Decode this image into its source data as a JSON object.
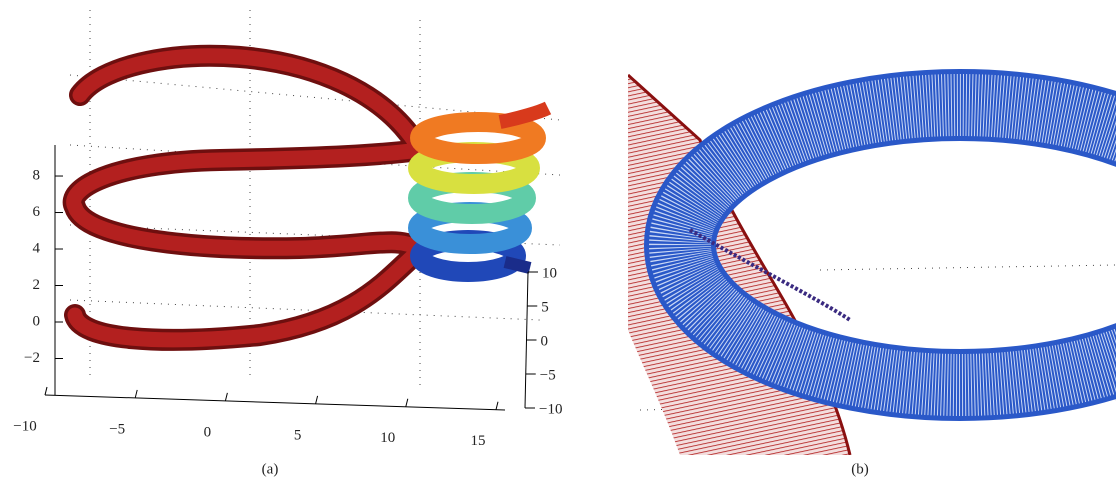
{
  "chart_data": [
    {
      "type": "surface3d",
      "caption": "(a)",
      "xlim": [
        -10,
        15.5
      ],
      "xticks": [
        {
          "value": -10,
          "label": "−10"
        },
        {
          "value": -5,
          "label": "−5"
        },
        0,
        5,
        10,
        15
      ],
      "ylim": [
        -10,
        10
      ],
      "yticks": [
        {
          "value": -10,
          "label": "−10"
        },
        {
          "value": -5,
          "label": "−5"
        },
        0,
        5,
        10
      ],
      "zlim": [
        -4,
        9.7
      ],
      "zticks": [
        {
          "value": -2,
          "label": "−2"
        },
        0,
        2,
        4,
        6,
        8
      ]
    },
    {
      "type": "mesh3d",
      "caption": "(b)"
    }
  ]
}
